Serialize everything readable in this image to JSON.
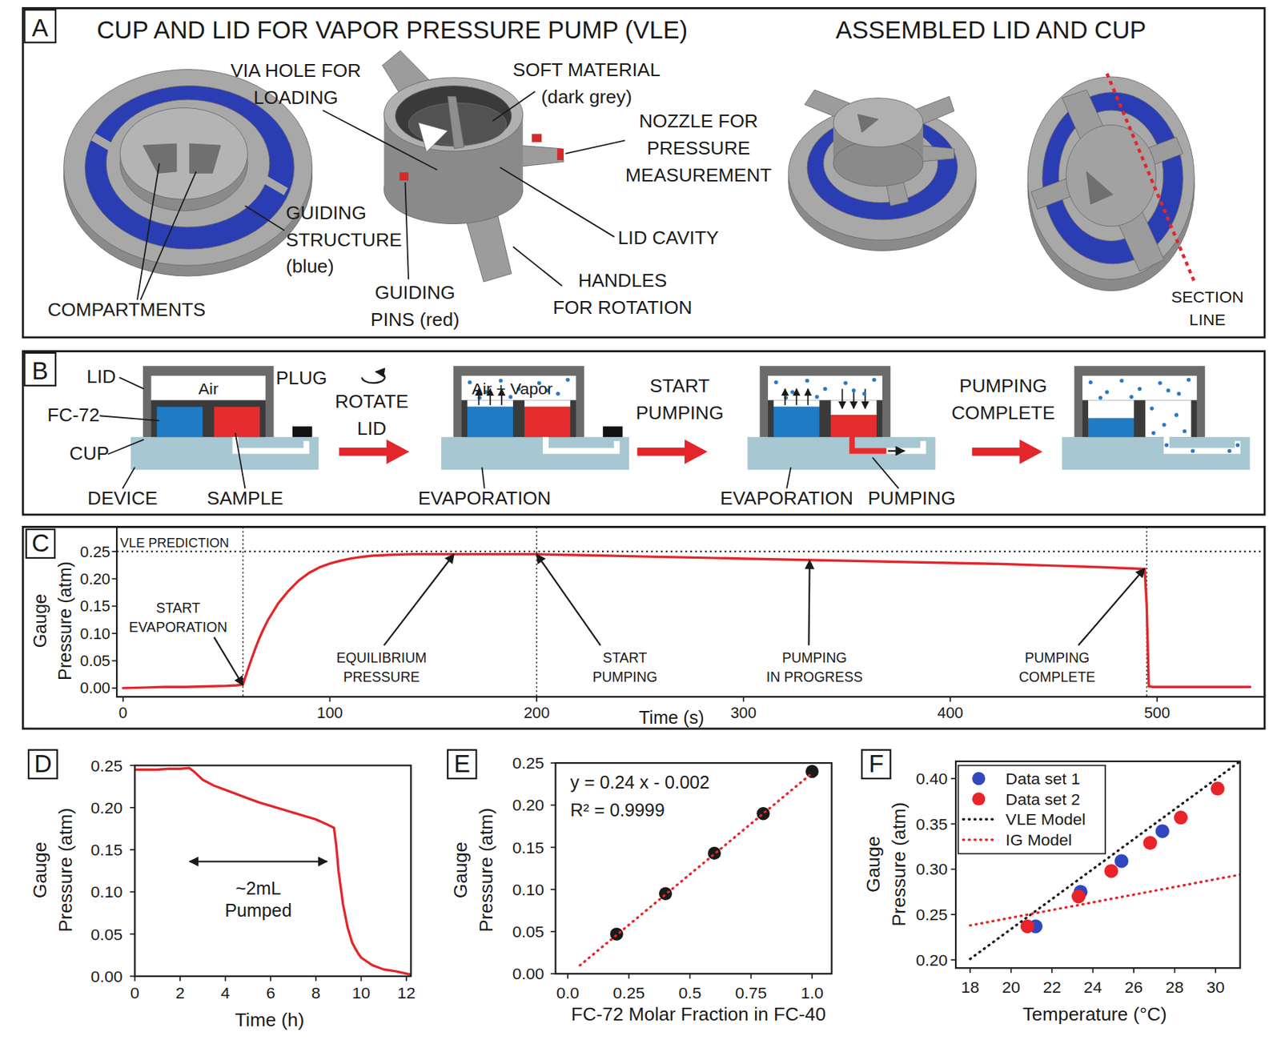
{
  "panel_a": {
    "letter": "A",
    "title_left": "CUP AND LID FOR VAPOR PRESSURE PUMP (VLE)",
    "title_right": "ASSEMBLED LID AND CUP",
    "labels": [
      {
        "lines": [
          "VIA HOLE FOR",
          "LOADING"
        ]
      },
      {
        "lines": [
          "SOFT MATERIAL",
          "(dark grey)"
        ]
      },
      {
        "lines": [
          "NOZZLE FOR",
          "PRESSURE",
          "MEASUREMENT"
        ]
      },
      {
        "lines": [
          "LID CAVITY"
        ]
      },
      {
        "lines": [
          "HANDLES",
          "FOR ROTATION"
        ]
      },
      {
        "lines": [
          "GUIDING",
          "PINS (red)"
        ]
      },
      {
        "lines": [
          "GUIDING",
          "STRUCTURE",
          "(blue)"
        ]
      },
      {
        "lines": [
          "COMPARTMENTS"
        ]
      },
      {
        "lines": [
          "SECTION",
          "LINE"
        ]
      }
    ]
  },
  "panel_b": {
    "letter": "B",
    "labels": [
      {
        "lines": [
          "LID"
        ]
      },
      {
        "lines": [
          "Air"
        ]
      },
      {
        "lines": [
          "PLUG"
        ]
      },
      {
        "lines": [
          "FC-72"
        ]
      },
      {
        "lines": [
          "CUP"
        ]
      },
      {
        "lines": [
          "DEVICE"
        ]
      },
      {
        "lines": [
          "SAMPLE"
        ]
      },
      {
        "lines": [
          "ROTATE",
          "LID"
        ]
      },
      {
        "lines": [
          "Air + Vapor"
        ]
      },
      {
        "lines": [
          "EVAPORATION"
        ]
      },
      {
        "lines": [
          "START",
          "PUMPING"
        ]
      },
      {
        "lines": [
          "EVAPORATION"
        ]
      },
      {
        "lines": [
          "PUMPING"
        ]
      },
      {
        "lines": [
          "PUMPING",
          "COMPLETE"
        ]
      }
    ]
  },
  "chart_data": [
    {
      "type": "line",
      "panel": "C",
      "xlabel": "Time (s)",
      "ylabel": [
        "Gauge",
        "Pressure (atm)"
      ],
      "xlim": [
        -3,
        552
      ],
      "ylim": [
        -0.016,
        0.295
      ],
      "xticks": [
        0,
        100,
        200,
        300,
        400,
        500
      ],
      "yticks": [
        {
          "value": 0,
          "label": "0.00"
        },
        0.05,
        {
          "value": 0.1,
          "label": "0.10"
        },
        0.15,
        {
          "value": 0.2,
          "label": "0.20"
        },
        0.25
      ],
      "grid": false,
      "hline": {
        "value": 0.25,
        "label": "VLE PREDICTION"
      },
      "vlines": [
        58,
        200,
        495
      ],
      "series": [
        {
          "color": "#e3262b",
          "line_style": "solid",
          "x": [
            0,
            10,
            20,
            30,
            40,
            50,
            55,
            58,
            60,
            62,
            64,
            66,
            68,
            70,
            75,
            80,
            85,
            90,
            95,
            100,
            105,
            110,
            115,
            120,
            125,
            130,
            140,
            150,
            160,
            180,
            200,
            225,
            250,
            275,
            300,
            325,
            350,
            375,
            400,
            425,
            450,
            475,
            494,
            495,
            496,
            498,
            500,
            520,
            545
          ],
          "values": [
            0.0,
            0.001,
            0.002,
            0.002,
            0.003,
            0.004,
            0.005,
            0.007,
            0.03,
            0.052,
            0.073,
            0.092,
            0.109,
            0.124,
            0.155,
            0.178,
            0.197,
            0.211,
            0.221,
            0.228,
            0.233,
            0.237,
            0.24,
            0.242,
            0.243,
            0.244,
            0.245,
            0.245,
            0.245,
            0.245,
            0.245,
            0.243,
            0.241,
            0.239,
            0.237,
            0.235,
            0.233,
            0.231,
            0.229,
            0.227,
            0.224,
            0.221,
            0.218,
            0.15,
            0.003,
            0.002,
            0.002,
            0.002,
            0.002
          ]
        }
      ],
      "annotations": [
        {
          "lines": [
            "START",
            "EVAPORATION"
          ],
          "x": 58,
          "y": 0.005
        },
        {
          "lines": [
            "EQUILIBRIUM",
            "PRESSURE"
          ],
          "x": 160,
          "y": 0.245
        },
        {
          "lines": [
            "START",
            "PUMPING"
          ],
          "x": 200,
          "y": 0.245
        },
        {
          "lines": [
            "PUMPING",
            "IN PROGRESS"
          ],
          "x": 332,
          "y": 0.234
        },
        {
          "lines": [
            "PUMPING",
            "COMPLETE"
          ],
          "x": 494,
          "y": 0.219
        }
      ]
    },
    {
      "type": "line",
      "panel": "D",
      "xlabel": "Time (h)",
      "ylabel": [
        "Gauge",
        "Pressure (atm)"
      ],
      "xlim": [
        0,
        12.2
      ],
      "ylim": [
        0,
        0.25
      ],
      "xticks": [
        0,
        2,
        4,
        6,
        8,
        10,
        12
      ],
      "yticks": [
        {
          "value": 0,
          "label": "0.00"
        },
        0.05,
        {
          "value": 0.1,
          "label": "0.10"
        },
        0.15,
        {
          "value": 0.2,
          "label": "0.20"
        },
        0.25
      ],
      "grid": false,
      "series": [
        {
          "color": "#e3262b",
          "line_style": "solid",
          "x": [
            0,
            0.5,
            1,
            1.5,
            2,
            2.4,
            2.6,
            3,
            3.5,
            4,
            4.5,
            5,
            5.5,
            6,
            6.5,
            7,
            7.5,
            8,
            8.5,
            8.8,
            8.9,
            9,
            9.2,
            9.4,
            9.6,
            9.8,
            10,
            10.5,
            11,
            11.5,
            12,
            12.2
          ],
          "values": [
            0.245,
            0.245,
            0.245,
            0.246,
            0.246,
            0.247,
            0.243,
            0.233,
            0.226,
            0.221,
            0.216,
            0.211,
            0.206,
            0.202,
            0.198,
            0.194,
            0.19,
            0.186,
            0.18,
            0.176,
            0.155,
            0.125,
            0.085,
            0.058,
            0.04,
            0.03,
            0.022,
            0.013,
            0.008,
            0.006,
            0.003,
            0.002
          ]
        }
      ],
      "annotations": [
        {
          "lines": [
            "~2mL",
            "Pumped"
          ],
          "x": [
            2.42,
            8.49
          ],
          "y": 0.136
        }
      ]
    },
    {
      "type": "scatter",
      "panel": "E",
      "xlabel": "FC-72 Molar Fraction in FC-40",
      "ylabel": [
        "Gauge",
        "Pressure (atm)"
      ],
      "xlim": [
        -0.05,
        1.08
      ],
      "ylim": [
        0,
        0.25
      ],
      "xticks": [
        {
          "value": 0,
          "label": "0.0"
        },
        0.25,
        0.5,
        0.75,
        {
          "value": 1,
          "label": "1.0"
        }
      ],
      "yticks": [
        {
          "value": 0,
          "label": "0.00"
        },
        0.05,
        {
          "value": 0.1,
          "label": "0.10"
        },
        0.15,
        {
          "value": 0.2,
          "label": "0.20"
        },
        0.25
      ],
      "grid": false,
      "series": [
        {
          "type": "scatter",
          "color": "#1a1a1a",
          "marker": "circle",
          "x": [
            0.2,
            0.4,
            0.6,
            0.8,
            1.0
          ],
          "values": [
            0.047,
            0.095,
            0.143,
            0.19,
            0.24
          ]
        },
        {
          "type": "line",
          "color": "#e3262b",
          "line_style": "dotted",
          "x": [
            0.05,
            1.0
          ],
          "values": [
            0.01,
            0.238
          ]
        }
      ],
      "annotations": [
        {
          "text": "y = 0.24 x - 0.002"
        },
        {
          "text": "R² = 0.9999"
        }
      ]
    },
    {
      "type": "scatter",
      "panel": "F",
      "xlabel": "Temperature (°C)",
      "ylabel": [
        "Gauge",
        "Pressure (atm)"
      ],
      "xlim": [
        17.3,
        31.2
      ],
      "ylim": [
        0.191,
        0.419
      ],
      "xticks": [
        18,
        20,
        22,
        24,
        26,
        28,
        30
      ],
      "yticks": [
        {
          "value": 0.2,
          "label": "0.20"
        },
        0.25,
        {
          "value": 0.3,
          "label": "0.30"
        },
        0.35,
        {
          "value": 0.4,
          "label": "0.40"
        }
      ],
      "grid": false,
      "legend": "upper left",
      "series": [
        {
          "name": "Data set 1",
          "type": "scatter",
          "color": "#3047bd",
          "marker": "circle",
          "x": [
            21.2,
            23.4,
            25.4,
            27.4
          ],
          "values": [
            0.237,
            0.275,
            0.309,
            0.342
          ]
        },
        {
          "name": "Data set 2",
          "type": "scatter",
          "color": "#e8232a",
          "marker": "circle",
          "x": [
            20.8,
            23.3,
            24.9,
            26.8,
            28.3,
            30.1
          ],
          "values": [
            0.237,
            0.27,
            0.298,
            0.329,
            0.357,
            0.389
          ]
        },
        {
          "name": "VLE Model",
          "type": "line",
          "color": "#1a1a1a",
          "line_style": "dotted",
          "x": [
            18,
            31.2
          ],
          "values": [
            0.201,
            0.419
          ]
        },
        {
          "name": "IG Model",
          "type": "line",
          "color": "#e3262b",
          "line_style": "dotted",
          "x": [
            18,
            31.2
          ],
          "values": [
            0.238,
            0.294
          ]
        }
      ]
    }
  ]
}
